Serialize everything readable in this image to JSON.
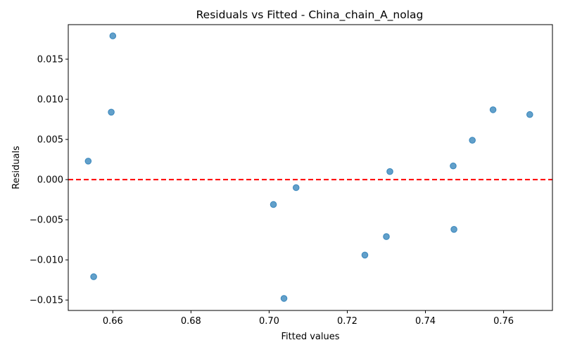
{
  "chart_data": {
    "type": "scatter",
    "title": "Residuals vs Fitted - China_chain_A_nolag",
    "xlabel": "Fitted values",
    "ylabel": "Residuals",
    "xlim": [
      0.6486,
      0.7725
    ],
    "ylim": [
      -0.0163,
      0.0193
    ],
    "x_ticks": [
      0.66,
      0.68,
      0.7,
      0.72,
      0.74,
      0.76
    ],
    "x_tick_labels": [
      "0.66",
      "0.68",
      "0.70",
      "0.72",
      "0.74",
      "0.76"
    ],
    "y_ticks": [
      -0.015,
      -0.01,
      -0.005,
      0.0,
      0.005,
      0.01,
      0.015
    ],
    "y_tick_labels": [
      "−0.015",
      "−0.010",
      "−0.005",
      "0.000",
      "0.005",
      "0.010",
      "0.015"
    ],
    "reference_line": {
      "y": 0.0,
      "color": "#ff0000",
      "style": "dashed"
    },
    "grid": false,
    "marker_color": "#1f77b4",
    "points": [
      {
        "x": 0.6537,
        "y": 0.0023
      },
      {
        "x": 0.6551,
        "y": -0.0121
      },
      {
        "x": 0.6596,
        "y": 0.0084
      },
      {
        "x": 0.66,
        "y": 0.0179
      },
      {
        "x": 0.7011,
        "y": -0.0031
      },
      {
        "x": 0.7038,
        "y": -0.0148
      },
      {
        "x": 0.7069,
        "y": -0.001
      },
      {
        "x": 0.7245,
        "y": -0.0094
      },
      {
        "x": 0.73,
        "y": -0.0071
      },
      {
        "x": 0.7309,
        "y": 0.001
      },
      {
        "x": 0.7471,
        "y": 0.0017
      },
      {
        "x": 0.7473,
        "y": -0.0062
      },
      {
        "x": 0.752,
        "y": 0.0049
      },
      {
        "x": 0.7573,
        "y": 0.0087
      },
      {
        "x": 0.7667,
        "y": 0.0081
      }
    ]
  }
}
